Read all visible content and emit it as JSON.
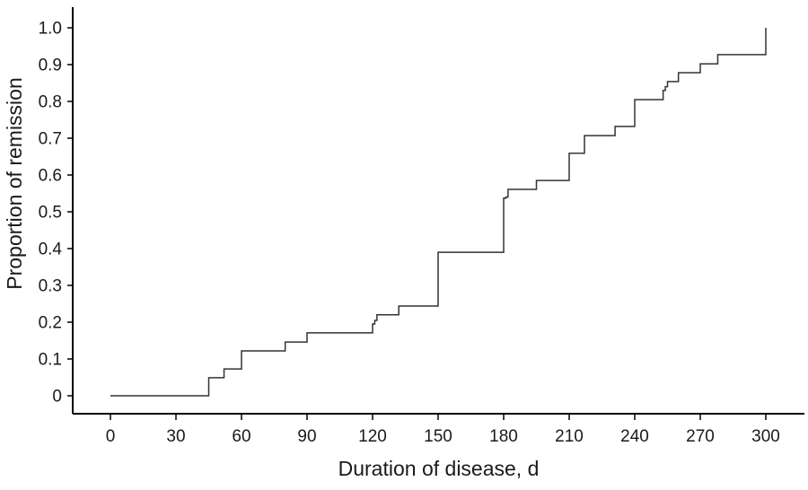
{
  "chart_data": {
    "type": "line",
    "subtype": "step",
    "title": "",
    "xlabel": "Duration of disease, d",
    "ylabel": "Proportion of remission",
    "xlim": [
      0,
      300
    ],
    "ylim": [
      0,
      1.0
    ],
    "x_ticks": [
      0,
      30,
      60,
      90,
      120,
      150,
      180,
      210,
      240,
      270,
      300
    ],
    "y_ticks": [
      0,
      0.1,
      0.2,
      0.3,
      0.4,
      0.5,
      0.6,
      0.7,
      0.8,
      0.9,
      1.0
    ],
    "y_tick_labels": [
      "0",
      "0.1",
      "0.2",
      "0.3",
      "0.4",
      "0.5",
      "0.6",
      "0.7",
      "0.8",
      "0.9",
      "1.0"
    ],
    "grid": false,
    "legend": "none",
    "line_color": "#333333",
    "series": [
      {
        "x": [
          0,
          45,
          52,
          60,
          80,
          90,
          120,
          121,
          122,
          132,
          150,
          180,
          181,
          182,
          195,
          210,
          217,
          231,
          240,
          253,
          254,
          255,
          260,
          270,
          278,
          300
        ],
        "y": [
          0,
          0.049,
          0.073,
          0.122,
          0.146,
          0.171,
          0.195,
          0.205,
          0.22,
          0.244,
          0.39,
          0.537,
          0.54,
          0.561,
          0.585,
          0.659,
          0.707,
          0.732,
          0.805,
          0.83,
          0.84,
          0.854,
          0.878,
          0.902,
          0.927,
          1.0
        ]
      }
    ]
  }
}
